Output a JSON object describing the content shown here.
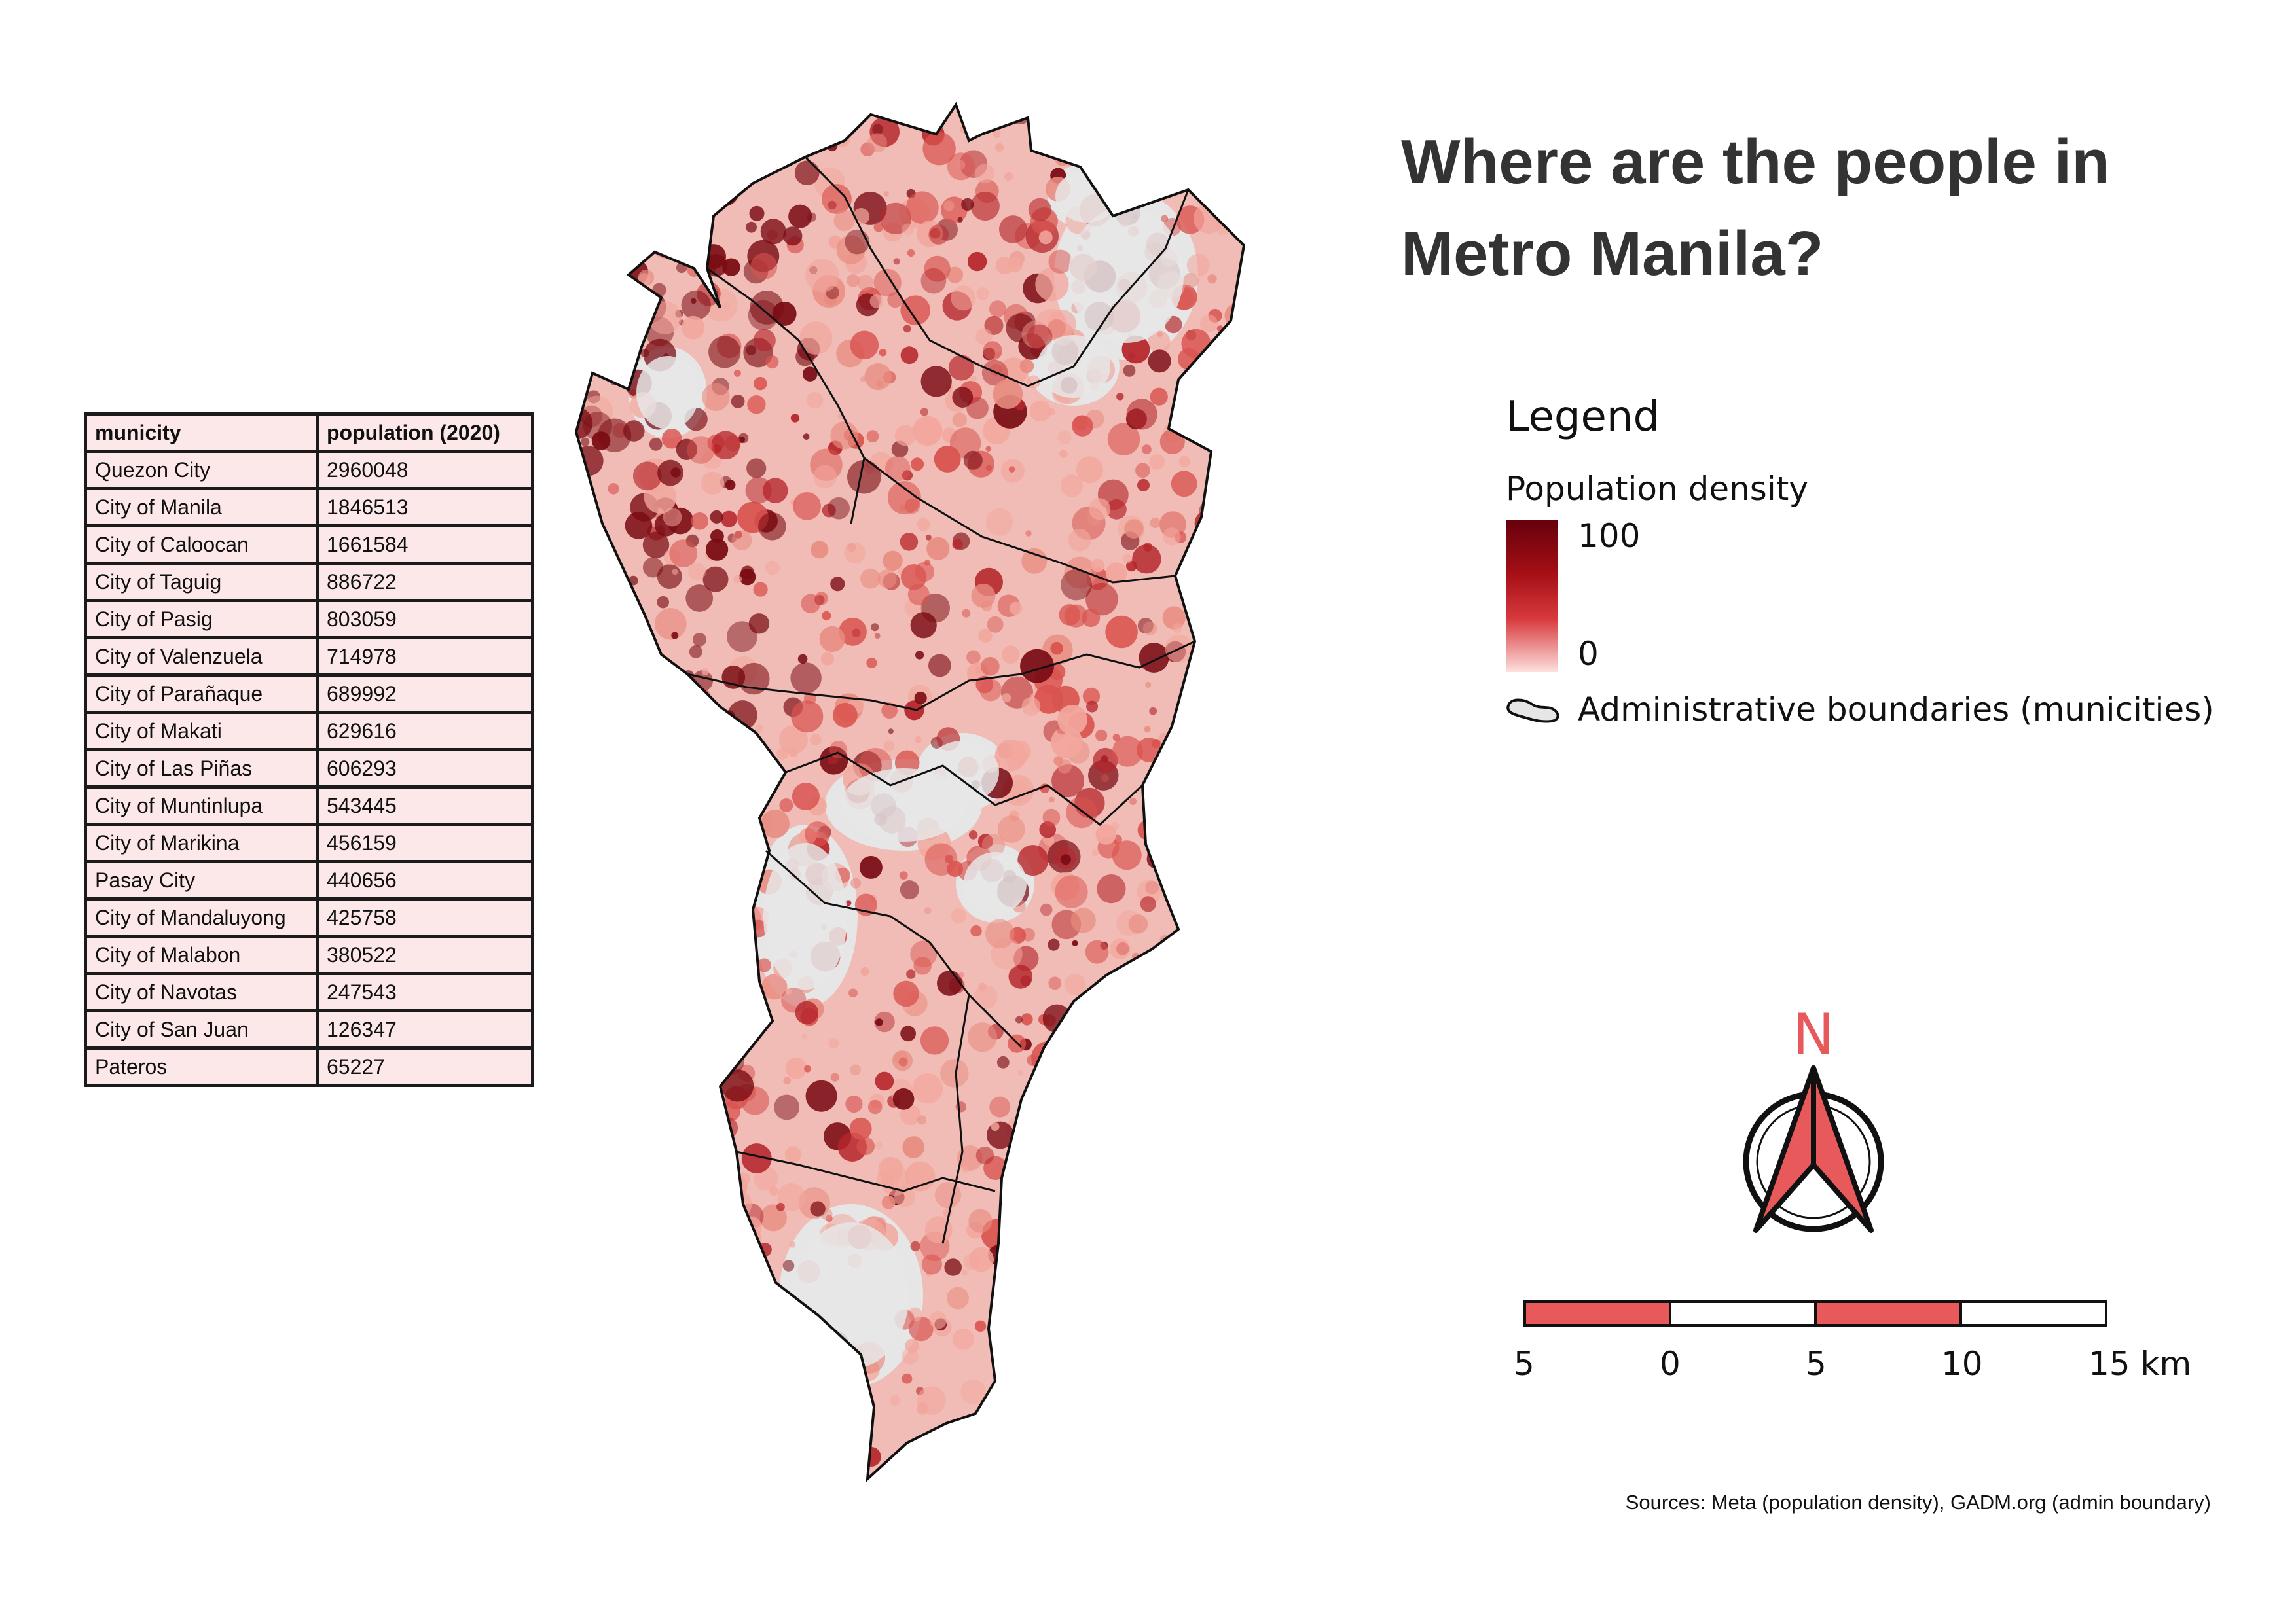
{
  "title": "Where are the people in Metro Manila?",
  "table": {
    "headers": [
      "municity",
      "population (2020)"
    ],
    "rows": [
      [
        "Quezon City",
        "2960048"
      ],
      [
        "City of Manila",
        "1846513"
      ],
      [
        "City of Caloocan",
        "1661584"
      ],
      [
        "City of Taguig",
        "886722"
      ],
      [
        "City of Pasig",
        "803059"
      ],
      [
        "City of Valenzuela",
        "714978"
      ],
      [
        "City of Parañaque",
        "689992"
      ],
      [
        "City of Makati",
        "629616"
      ],
      [
        "City of Las Piñas",
        "606293"
      ],
      [
        "City of Muntinlupa",
        "543445"
      ],
      [
        "City of Marikina",
        "456159"
      ],
      [
        "Pasay City",
        "440656"
      ],
      [
        "City of Mandaluyong",
        "425758"
      ],
      [
        "City of Malabon",
        "380522"
      ],
      [
        "City of Navotas",
        "247543"
      ],
      [
        "City of San Juan",
        "126347"
      ],
      [
        "Pateros",
        "65227"
      ]
    ]
  },
  "legend": {
    "title": "Legend",
    "density_title": "Population density",
    "density_max": "100",
    "density_min": "0",
    "boundary_label": "Administrative boundaries (municities)",
    "ramp_colors": [
      "#67000d",
      "#a50f15",
      "#d73a3e",
      "#fde0dd"
    ]
  },
  "north_arrow": {
    "label": "N",
    "color": "#e8595b"
  },
  "scale_bar": {
    "labels": [
      "5",
      "0",
      "5",
      "10",
      "15 km"
    ],
    "fill_color": "#e8595b"
  },
  "sources": "Sources: Meta (population density), GADM.org (admin boundary)",
  "map_colors": {
    "no_data": "#e6e6e6",
    "light": "#f2a69c",
    "medium": "#d9534f",
    "dark": "#7a0c14",
    "boundary": "#111111"
  }
}
